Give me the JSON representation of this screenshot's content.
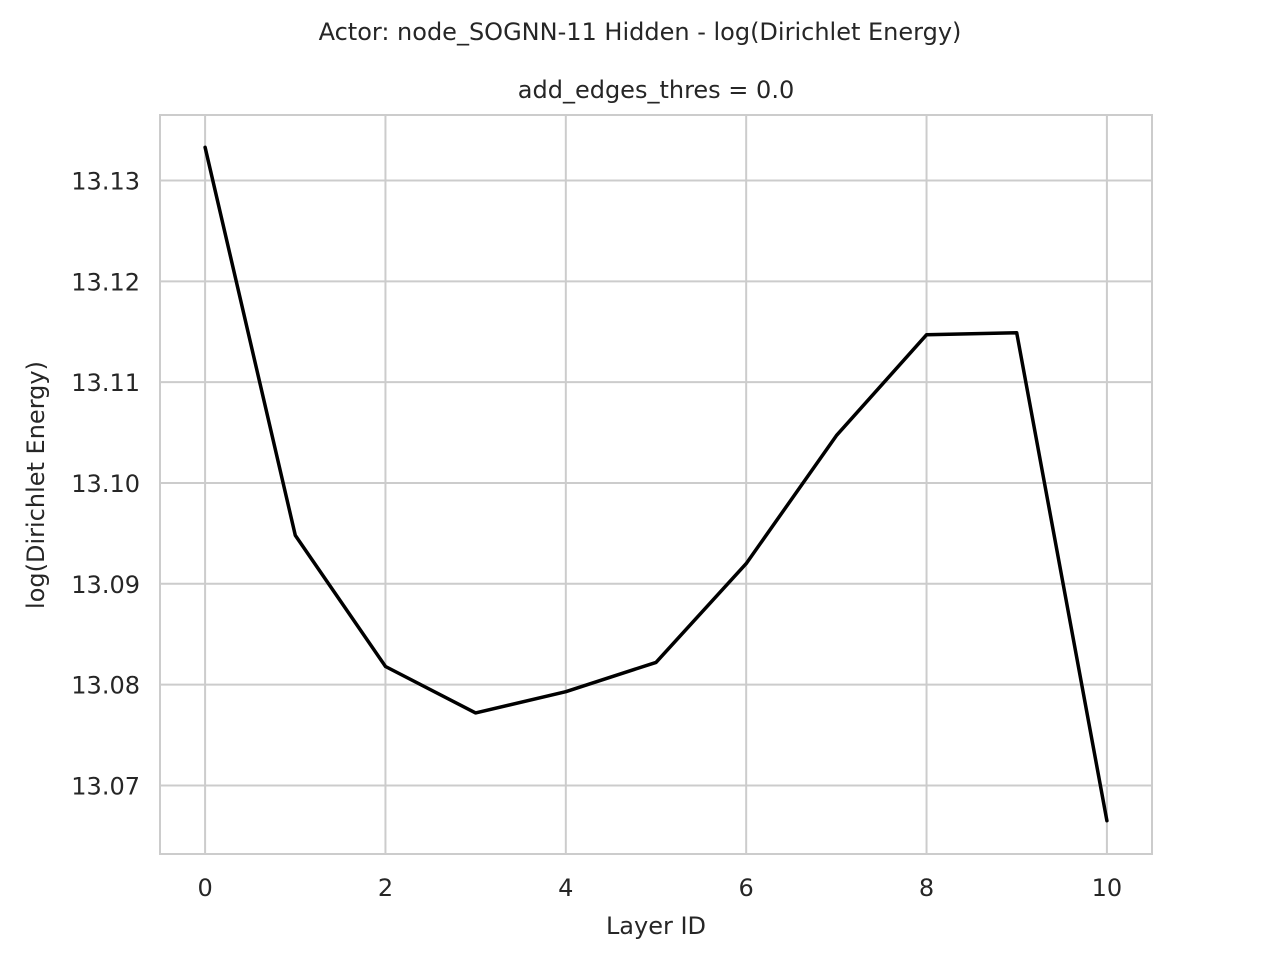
{
  "chart_data": {
    "type": "line",
    "suptitle": "Actor: node_SOGNN-11 Hidden - log(Dirichlet Energy)",
    "title": "add_edges_thres = 0.0",
    "xlabel": "Layer ID",
    "ylabel": "log(Dirichlet Energy)",
    "xlim": [
      -0.5,
      10.5
    ],
    "ylim": [
      13.0632,
      13.1365
    ],
    "xticks": [
      0,
      2,
      4,
      6,
      8,
      10
    ],
    "yticks": [
      13.07,
      13.08,
      13.09,
      13.1,
      13.11,
      13.12,
      13.13
    ],
    "ytick_labels": [
      "13.07",
      "13.08",
      "13.09",
      "13.10",
      "13.11",
      "13.12",
      "13.13"
    ],
    "grid": true,
    "series": [
      {
        "color": "#000000",
        "x": [
          0,
          1,
          2,
          3,
          4,
          5,
          6,
          7,
          8,
          9,
          10
        ],
        "values": [
          13.1333,
          13.0948,
          13.0818,
          13.0772,
          13.0793,
          13.0822,
          13.092,
          13.1047,
          13.1147,
          13.1149,
          13.0665
        ]
      }
    ]
  }
}
